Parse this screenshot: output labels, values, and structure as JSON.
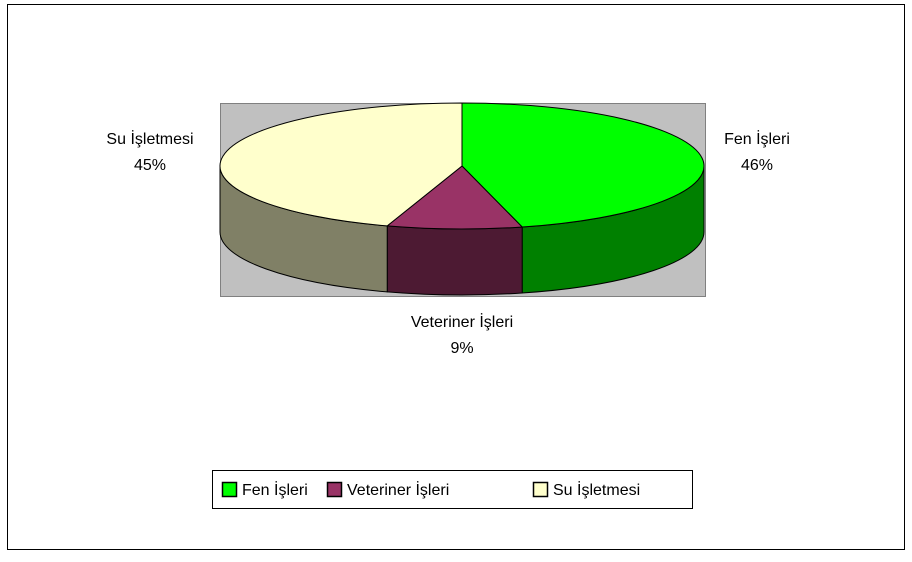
{
  "chart_data": {
    "type": "pie",
    "categories": [
      "Fen İşleri",
      "Veteriner İşleri",
      "Su İşletmesi"
    ],
    "values": [
      46,
      9,
      45
    ],
    "value_labels": [
      "46%",
      "9%",
      "45%"
    ],
    "colors": [
      "#00ff00",
      "#993366",
      "#ffffcc"
    ],
    "legend": "bottom"
  }
}
